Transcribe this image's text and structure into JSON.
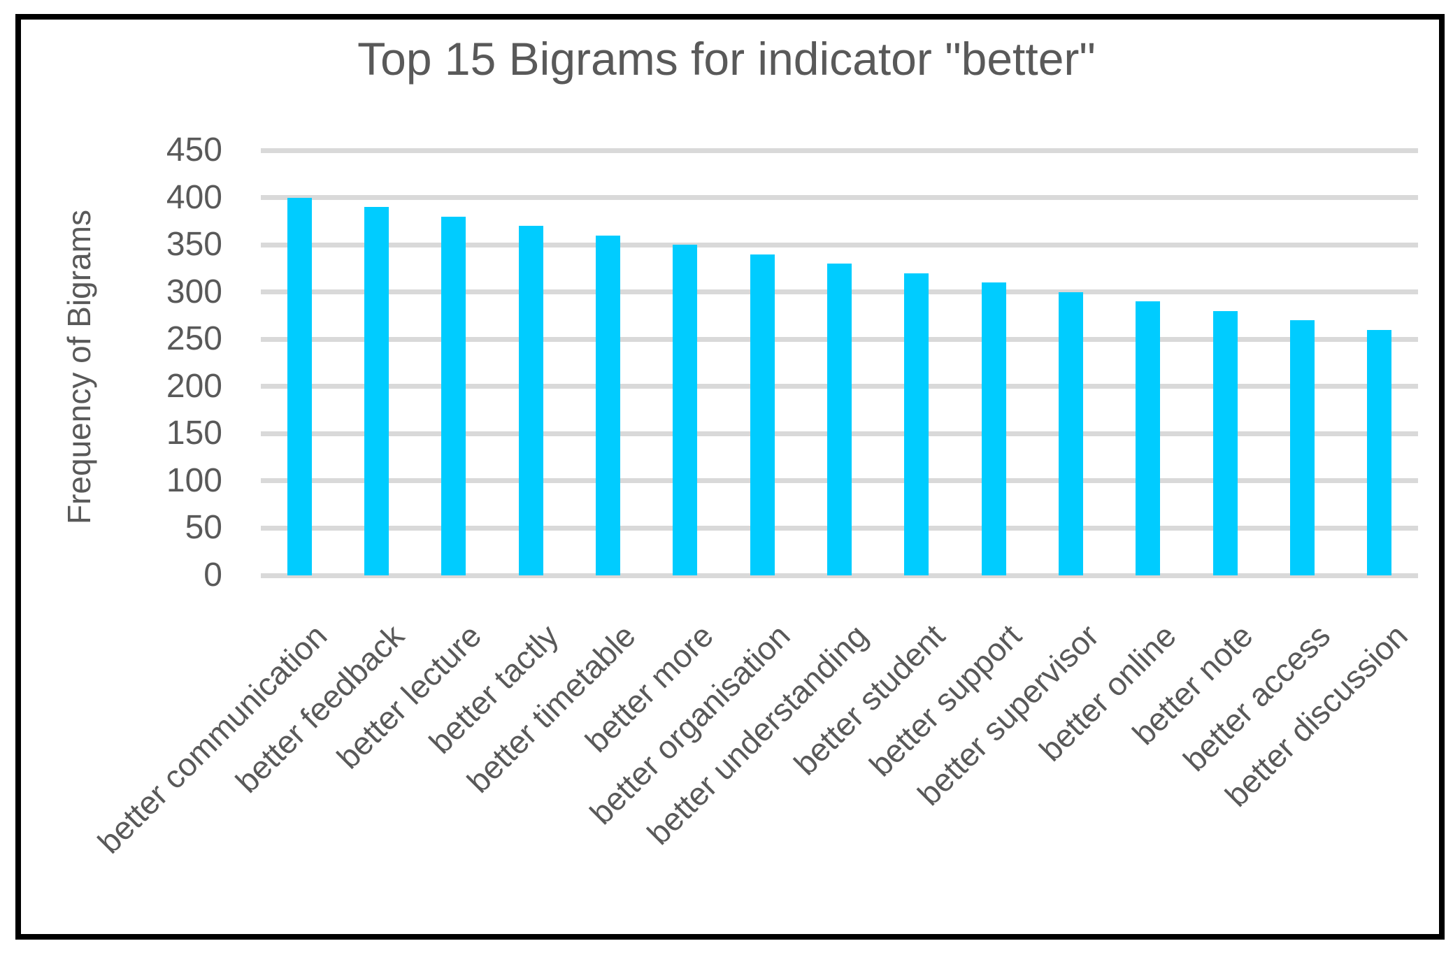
{
  "chart_data": {
    "type": "bar",
    "title": "Top 15 Bigrams for indicator \"better\"",
    "ylabel": "Frequency of Bigrams",
    "xlabel": "",
    "categories": [
      "better communication",
      "better feedback",
      "better lecture",
      "better tactly",
      "better timetable",
      "better more",
      "better organisation",
      "better understanding",
      "better student",
      "better support",
      "better supervisor",
      "better online",
      "better note",
      "better access",
      "better discussion"
    ],
    "values": [
      400,
      390,
      380,
      370,
      360,
      350,
      340,
      330,
      320,
      310,
      300,
      290,
      280,
      270,
      260
    ],
    "ylim": [
      0,
      450
    ],
    "ytick_step": 50,
    "grid": true,
    "legend": false,
    "bar_color": "#00CCFF",
    "gridline_color": "#D9D9D9",
    "text_color": "#595959",
    "frame_border_color": "#000000"
  }
}
